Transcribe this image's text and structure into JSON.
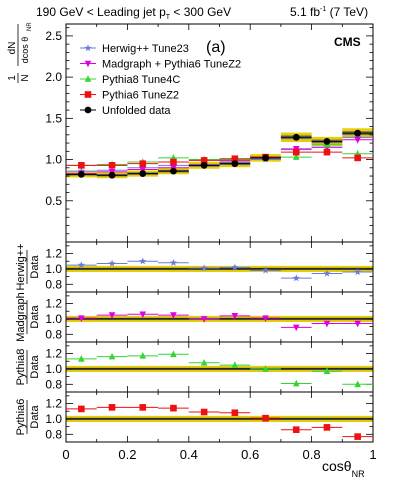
{
  "header": {
    "left_pre": "190 GeV < Leading jet p",
    "left_sub": "T",
    "left_post": " < 300 GeV",
    "right_pre": "5.1 fb",
    "right_sup": "-1",
    "right_post": " (7 TeV)"
  },
  "panel_tag": "(a)",
  "cms_label": "CMS",
  "xlabel_main": "cosθ",
  "xlabel_sub": "NR",
  "colors": {
    "herwig": "#6a7bd8",
    "madgraph": "#e000e0",
    "pythia8": "#33d633",
    "pythia6": "#ee1111",
    "data": "#000000",
    "band_outer": "#e8d000",
    "band_inner": "#707070"
  },
  "chart_data": [
    {
      "type": "scatter",
      "yticks": [
        "0.5",
        "1.0",
        "1.5",
        "2.0",
        "2.5"
      ],
      "ylim": [
        0.0,
        2.62
      ],
      "xlim": [
        0,
        1
      ],
      "x": [
        0.05,
        0.15,
        0.25,
        0.35,
        0.45,
        0.55,
        0.65,
        0.75,
        0.85,
        0.95
      ],
      "legend": [
        "Herwig++ Tune23",
        "Madgraph + Pythia6 TuneZ2",
        "Pythia8 Tune4C",
        "Pythia6 TuneZ2",
        "Unfolded data"
      ],
      "series": [
        {
          "name": "Herwig++ Tune23",
          "key": "herwig",
          "marker": "star",
          "values": [
            0.86,
            0.87,
            0.9,
            0.93,
            0.94,
            0.97,
            1.0,
            1.12,
            1.15,
            1.27
          ]
        },
        {
          "name": "Madgraph + Pythia6 TuneZ2",
          "key": "madgraph",
          "marker": "tri_down",
          "values": [
            0.83,
            0.85,
            0.88,
            0.9,
            0.93,
            0.99,
            1.03,
            1.13,
            1.15,
            1.24
          ]
        },
        {
          "name": "Pythia8 Tune4C",
          "key": "pythia8",
          "marker": "tri_up",
          "values": [
            0.93,
            0.94,
            0.97,
            1.02,
            1.0,
            1.0,
            1.02,
            1.03,
            1.18,
            1.07
          ]
        },
        {
          "name": "Pythia6 TuneZ2",
          "key": "pythia6",
          "marker": "square",
          "values": [
            0.93,
            0.93,
            0.95,
            0.97,
            0.99,
            1.01,
            1.03,
            1.09,
            1.09,
            1.02
          ]
        },
        {
          "name": "Unfolded data",
          "key": "data",
          "marker": "circle",
          "values": [
            0.82,
            0.81,
            0.83,
            0.86,
            0.93,
            0.95,
            1.02,
            1.27,
            1.22,
            1.32
          ]
        }
      ]
    },
    {
      "type": "scatter",
      "ylabel_top": "Herwig++",
      "ylabel_bottom": "Data",
      "yticks": [
        "0.8",
        "1.0",
        "1.2"
      ],
      "ylim": [
        0.7,
        1.35
      ],
      "x": [
        0.05,
        0.15,
        0.25,
        0.35,
        0.45,
        0.55,
        0.65,
        0.75,
        0.85,
        0.95
      ],
      "series": [
        {
          "name": "Herwig++ Tune23",
          "key": "herwig",
          "marker": "star",
          "values": [
            1.05,
            1.07,
            1.1,
            1.08,
            1.01,
            1.02,
            0.98,
            0.88,
            0.94,
            0.96
          ]
        }
      ]
    },
    {
      "type": "scatter",
      "ylabel_top": "Madgraph",
      "ylabel_bottom": "Data",
      "yticks": [
        "0.8",
        "1.0",
        "1.2"
      ],
      "ylim": [
        0.7,
        1.35
      ],
      "x": [
        0.05,
        0.15,
        0.25,
        0.35,
        0.45,
        0.55,
        0.65,
        0.75,
        0.85,
        0.95
      ],
      "series": [
        {
          "name": "Madgraph + Pythia6 TuneZ2",
          "key": "madgraph",
          "marker": "tri_down",
          "values": [
            1.01,
            1.05,
            1.06,
            1.05,
            1.0,
            1.04,
            1.01,
            0.89,
            0.94,
            0.94
          ]
        }
      ]
    },
    {
      "type": "scatter",
      "ylabel_top": "Pythia8",
      "ylabel_bottom": "Data",
      "yticks": [
        "0.8",
        "1.0",
        "1.2"
      ],
      "ylim": [
        0.7,
        1.35
      ],
      "x": [
        0.05,
        0.15,
        0.25,
        0.35,
        0.45,
        0.55,
        0.65,
        0.75,
        0.85,
        0.95
      ],
      "series": [
        {
          "name": "Pythia8 Tune4C",
          "key": "pythia8",
          "marker": "tri_up",
          "values": [
            1.13,
            1.16,
            1.17,
            1.19,
            1.08,
            1.05,
            1.0,
            0.81,
            0.97,
            0.8
          ]
        }
      ]
    },
    {
      "type": "scatter",
      "ylabel_top": "Pythia6",
      "ylabel_bottom": "Data",
      "yticks": [
        "0.8",
        "1.0",
        "1.2"
      ],
      "ylim": [
        0.7,
        1.35
      ],
      "x": [
        0.05,
        0.15,
        0.25,
        0.35,
        0.45,
        0.55,
        0.65,
        0.75,
        0.85,
        0.95
      ],
      "xticks": [
        "0",
        "0.2",
        "0.4",
        "0.6",
        "0.8",
        "1"
      ],
      "series": [
        {
          "name": "Pythia6 TuneZ2",
          "key": "pythia6",
          "marker": "square",
          "values": [
            1.13,
            1.15,
            1.15,
            1.14,
            1.09,
            1.08,
            1.01,
            0.86,
            0.89,
            0.77
          ]
        }
      ]
    }
  ]
}
